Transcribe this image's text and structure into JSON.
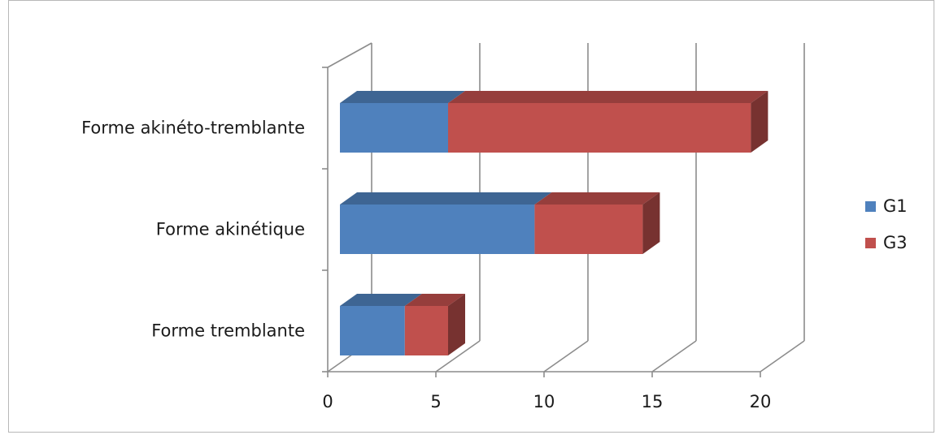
{
  "chart_data": {
    "type": "bar",
    "orientation": "horizontal",
    "stacked": true,
    "three_d": true,
    "categories": [
      "Forme tremblante",
      "Forme akinétique",
      "Forme akinéto-tremblante"
    ],
    "series": [
      {
        "name": "G1",
        "values": [
          3,
          9,
          5
        ],
        "color": "#4f81bd"
      },
      {
        "name": "G3",
        "values": [
          2,
          5,
          14
        ],
        "color": "#c0504d"
      }
    ],
    "xlim": [
      0,
      20
    ],
    "xticks": [
      "0",
      "5",
      "10",
      "15",
      "20"
    ],
    "grid": true,
    "legend_position": "right"
  }
}
